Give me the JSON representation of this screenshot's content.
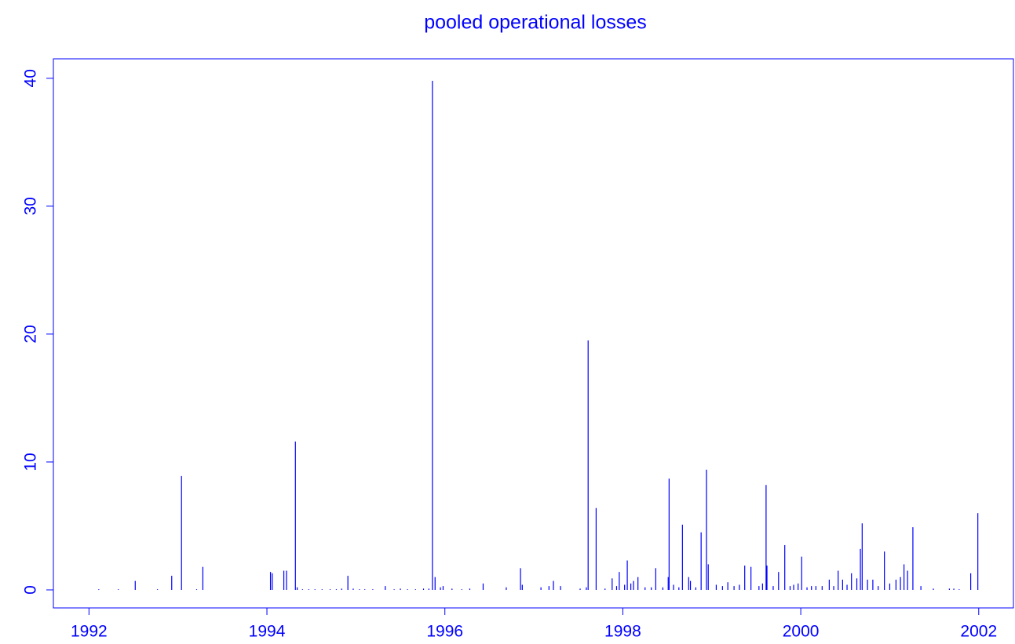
{
  "chart_data": {
    "type": "spike",
    "title": "pooled operational losses",
    "color": "#0000ff",
    "x": [
      1992.11,
      1992.33,
      1992.52,
      1992.77,
      1992.93,
      1993.04,
      1993.21,
      1993.28,
      1994.04,
      1994.06,
      1994.19,
      1994.22,
      1994.32,
      1994.34,
      1994.4,
      1994.47,
      1994.54,
      1994.62,
      1994.71,
      1994.78,
      1994.84,
      1994.91,
      1994.97,
      1995.04,
      1995.1,
      1995.19,
      1995.33,
      1995.43,
      1995.5,
      1995.58,
      1995.67,
      1995.76,
      1995.82,
      1995.86,
      1995.89,
      1995.95,
      1995.98,
      1996.08,
      1996.19,
      1996.28,
      1996.43,
      1996.69,
      1996.85,
      1996.87,
      1997.08,
      1997.17,
      1997.22,
      1997.3,
      1997.52,
      1997.59,
      1997.61,
      1997.7,
      1997.8,
      1997.88,
      1997.93,
      1997.96,
      1998.02,
      1998.05,
      1998.09,
      1998.12,
      1998.17,
      1998.25,
      1998.32,
      1998.37,
      1998.45,
      1998.51,
      1998.52,
      1998.57,
      1998.63,
      1998.67,
      1998.74,
      1998.76,
      1998.82,
      1998.88,
      1998.94,
      1998.96,
      1999.05,
      1999.12,
      1999.18,
      1999.25,
      1999.31,
      1999.37,
      1999.44,
      1999.53,
      1999.57,
      1999.61,
      1999.62,
      1999.69,
      1999.75,
      1999.82,
      1999.88,
      1999.92,
      1999.97,
      2000.01,
      2000.07,
      2000.12,
      2000.17,
      2000.24,
      2000.32,
      2000.37,
      2000.42,
      2000.47,
      2000.52,
      2000.57,
      2000.63,
      2000.67,
      2000.69,
      2000.75,
      2000.81,
      2000.87,
      2000.94,
      2001.0,
      2001.07,
      2001.12,
      2001.16,
      2001.2,
      2001.26,
      2001.35,
      2001.49,
      2001.67,
      2001.72,
      2001.78,
      2001.91,
      2001.99
    ],
    "values": [
      0.05,
      0.05,
      0.7,
      0.05,
      1.1,
      8.9,
      0.05,
      1.8,
      1.4,
      1.3,
      1.5,
      1.5,
      11.6,
      0.2,
      0.05,
      0.05,
      0.05,
      0.05,
      0.05,
      0.05,
      0.1,
      1.1,
      0.1,
      0.05,
      0.05,
      0.05,
      0.3,
      0.05,
      0.1,
      0.05,
      0.05,
      0.1,
      0.1,
      39.8,
      1.0,
      0.2,
      0.3,
      0.1,
      0.05,
      0.1,
      0.5,
      0.2,
      1.7,
      0.4,
      0.2,
      0.3,
      0.7,
      0.3,
      0.1,
      0.2,
      19.5,
      6.4,
      0.1,
      0.9,
      0.3,
      1.4,
      0.4,
      2.3,
      0.5,
      0.7,
      1.0,
      0.2,
      0.2,
      1.7,
      0.2,
      1.0,
      8.7,
      0.4,
      0.2,
      5.1,
      1.0,
      0.7,
      0.2,
      4.5,
      9.4,
      2.0,
      0.4,
      0.3,
      0.6,
      0.3,
      0.4,
      1.9,
      1.8,
      0.3,
      0.5,
      8.2,
      1.9,
      0.3,
      1.4,
      3.5,
      0.3,
      0.4,
      0.5,
      2.6,
      0.2,
      0.3,
      0.3,
      0.3,
      0.8,
      0.3,
      1.5,
      0.8,
      0.4,
      1.3,
      0.9,
      3.2,
      5.2,
      0.8,
      0.8,
      0.3,
      3.0,
      0.5,
      0.8,
      1.0,
      2.0,
      1.5,
      4.9,
      0.3,
      0.1,
      0.1,
      0.1,
      0.05,
      1.3,
      6.0
    ],
    "xlim": [
      1991.6,
      2002.39
    ],
    "ylim": [
      -1.41,
      41.52
    ],
    "xticks": [
      1992,
      1994,
      1996,
      1998,
      2000,
      2002
    ],
    "yticks": [
      0,
      10,
      20,
      30,
      40
    ]
  }
}
